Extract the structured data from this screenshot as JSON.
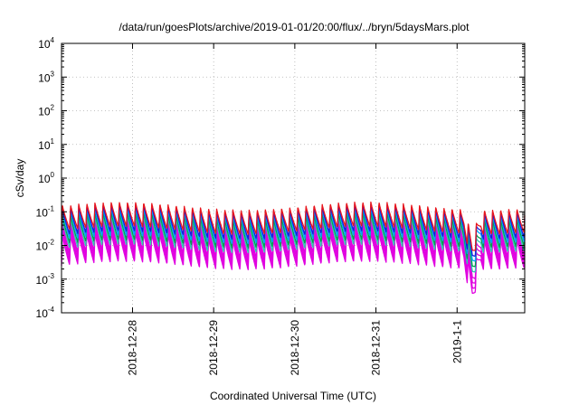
{
  "chart_data": {
    "type": "line",
    "title": "/data/run/goesPlots/archive/2019-01-01/20:00/flux/../bryn/5daysMars.plot",
    "xlabel": "Coordinated Universal Time (UTC)",
    "ylabel": "cSv/day",
    "yscale": "log",
    "ylim": [
      0.0001,
      10000
    ],
    "xlim": [
      "2018-12-27 03:00",
      "2019-01-01 20:00"
    ],
    "grid": true,
    "y_ticks": [
      {
        "base": "10",
        "exp": "-4",
        "value": 0.0001
      },
      {
        "base": "10",
        "exp": "-3",
        "value": 0.001
      },
      {
        "base": "10",
        "exp": "-2",
        "value": 0.01
      },
      {
        "base": "10",
        "exp": "-1",
        "value": 0.1
      },
      {
        "base": "10",
        "exp": "0",
        "value": 1
      },
      {
        "base": "10",
        "exp": "1",
        "value": 10
      },
      {
        "base": "10",
        "exp": "2",
        "value": 100
      },
      {
        "base": "10",
        "exp": "3",
        "value": 1000
      },
      {
        "base": "10",
        "exp": "4",
        "value": 10000
      }
    ],
    "x_ticks": [
      {
        "label": "2018-12-28",
        "value": "2018-12-28 00:00"
      },
      {
        "label": "2018-12-29",
        "value": "2018-12-29 00:00"
      },
      {
        "label": "2018-12-30",
        "value": "2018-12-30 00:00"
      },
      {
        "label": "2018-12-31",
        "value": "2018-12-31 00:00"
      },
      {
        "label": "2019-1-1",
        "value": "2019-01-01 00:00"
      }
    ],
    "sawtooth_cycles_per_day": 10,
    "dip_interval": [
      "2019-01-01 02:00",
      "2019-01-01 07:00"
    ],
    "series": [
      {
        "color": "#e8141c",
        "peak": 0.15,
        "trough": 0.028
      },
      {
        "color": "#1a1adc",
        "peak": 0.13,
        "trough": 0.02
      },
      {
        "color": "#00a0ff",
        "peak": 0.11,
        "trough": 0.015
      },
      {
        "color": "#00a050",
        "peak": 0.08,
        "trough": 0.011
      },
      {
        "color": "#2fc8b0",
        "peak": 0.065,
        "trough": 0.008
      },
      {
        "color": "#e000e0",
        "peak": 0.05,
        "trough": 0.0055
      },
      {
        "color": "#e000e0",
        "peak": 0.038,
        "trough": 0.0042
      },
      {
        "color": "#e000e0",
        "peak": 0.028,
        "trough": 0.0032
      },
      {
        "color": "#e000e0",
        "peak": 0.02,
        "trough": 0.0025
      }
    ]
  }
}
